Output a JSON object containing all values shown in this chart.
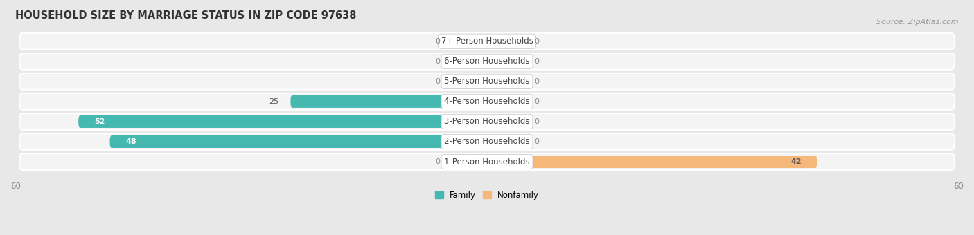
{
  "title": "HOUSEHOLD SIZE BY MARRIAGE STATUS IN ZIP CODE 97638",
  "source": "Source: ZipAtlas.com",
  "categories": [
    "7+ Person Households",
    "6-Person Households",
    "5-Person Households",
    "4-Person Households",
    "3-Person Households",
    "2-Person Households",
    "1-Person Households"
  ],
  "family_values": [
    0,
    0,
    0,
    25,
    52,
    48,
    0
  ],
  "nonfamily_values": [
    0,
    0,
    0,
    0,
    0,
    0,
    42
  ],
  "family_color": "#45b8b0",
  "nonfamily_color": "#f5b87a",
  "xlim": 60,
  "bar_height": 0.62,
  "bg_color": "#e8e8e8",
  "row_bg_color": "#f4f4f4",
  "title_fontsize": 10.5,
  "source_fontsize": 8,
  "label_fontsize": 8.5,
  "value_fontsize": 8,
  "axis_fontsize": 8.5,
  "stub_size": 5
}
